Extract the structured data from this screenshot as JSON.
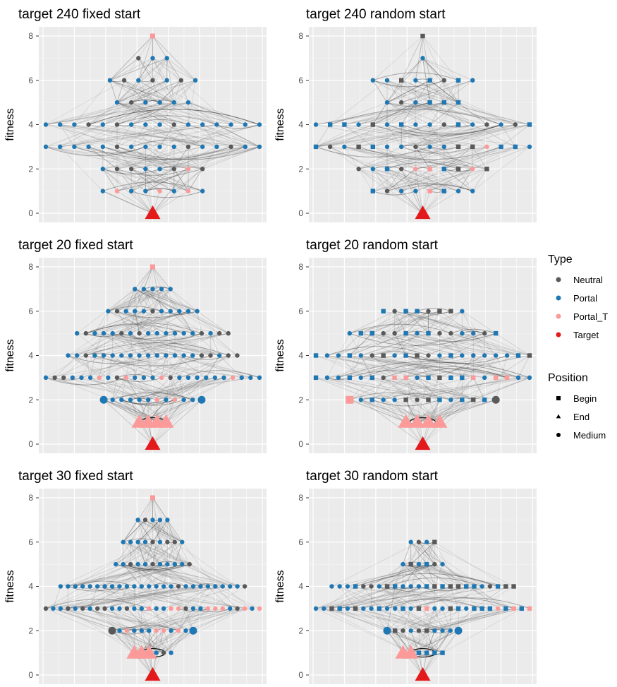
{
  "legend": {
    "type": {
      "title": "Type",
      "items": [
        {
          "label": "Neutral",
          "color": "#595959"
        },
        {
          "label": "Portal",
          "color": "#1f78b4"
        },
        {
          "label": "Portal_T",
          "color": "#fb9a99"
        },
        {
          "label": "Target",
          "color": "#e31a1c"
        }
      ]
    },
    "position": {
      "title": "Position",
      "items": [
        {
          "label": "Begin",
          "shape": "square"
        },
        {
          "label": "End",
          "shape": "triangle"
        },
        {
          "label": "Medium",
          "shape": "circle"
        }
      ]
    }
  },
  "chart_data": [
    {
      "type": "scatter",
      "title": "target 240 fixed start",
      "ylabel": "fitness",
      "ylim": [
        0,
        8
      ],
      "yticks": [
        0,
        2,
        4,
        6,
        8
      ],
      "grid": true,
      "start": "fixed",
      "levels": [
        {
          "fitness": 8,
          "n": 1,
          "begin": 1
        },
        {
          "fitness": 7,
          "n": 3
        },
        {
          "fitness": 6,
          "n": 7
        },
        {
          "fitness": 5,
          "n": 6
        },
        {
          "fitness": 4,
          "n": 16
        },
        {
          "fitness": 3,
          "n": 16
        },
        {
          "fitness": 2,
          "n": 8
        },
        {
          "fitness": 1,
          "n": 8
        },
        {
          "fitness": 0,
          "n": 1,
          "end": 1
        }
      ]
    },
    {
      "type": "scatter",
      "title": "target 240 random start",
      "ylabel": "fitness",
      "ylim": [
        0,
        8
      ],
      "yticks": [
        0,
        2,
        4,
        6,
        8
      ],
      "grid": true,
      "start": "random",
      "levels": [
        {
          "fitness": 8,
          "n": 1
        },
        {
          "fitness": 7,
          "n": 1
        },
        {
          "fitness": 6,
          "n": 8
        },
        {
          "fitness": 5,
          "n": 6
        },
        {
          "fitness": 4,
          "n": 16
        },
        {
          "fitness": 3,
          "n": 16
        },
        {
          "fitness": 2,
          "n": 10
        },
        {
          "fitness": 1,
          "n": 8
        },
        {
          "fitness": 0,
          "n": 1,
          "end": 1
        }
      ]
    },
    {
      "type": "scatter",
      "title": "target 20 fixed start",
      "ylabel": "fitness",
      "ylim": [
        0,
        8
      ],
      "yticks": [
        0,
        2,
        4,
        6,
        8
      ],
      "grid": true,
      "start": "fixed",
      "levels": [
        {
          "fitness": 8,
          "n": 1,
          "begin": 1
        },
        {
          "fitness": 7,
          "n": 5
        },
        {
          "fitness": 6,
          "n": 11
        },
        {
          "fitness": 5,
          "n": 18
        },
        {
          "fitness": 4,
          "n": 20
        },
        {
          "fitness": 3,
          "n": 25
        },
        {
          "fitness": 2,
          "n": 12,
          "big": true
        },
        {
          "fitness": 1,
          "n": 4,
          "end": 4,
          "ring": true
        },
        {
          "fitness": 0,
          "n": 1,
          "end": 1
        }
      ]
    },
    {
      "type": "scatter",
      "title": "target 20 random start",
      "ylabel": "fitness",
      "ylim": [
        0,
        8
      ],
      "yticks": [
        0,
        2,
        4,
        6,
        8
      ],
      "grid": true,
      "start": "random",
      "levels": [
        {
          "fitness": 6,
          "n": 8
        },
        {
          "fitness": 5,
          "n": 14
        },
        {
          "fitness": 4,
          "n": 20
        },
        {
          "fitness": 3,
          "n": 20
        },
        {
          "fitness": 2,
          "n": 14,
          "big": true
        },
        {
          "fitness": 1,
          "n": 4,
          "end": 4,
          "ring": true
        },
        {
          "fitness": 0,
          "n": 1,
          "end": 1
        }
      ]
    },
    {
      "type": "scatter",
      "title": "target 30 fixed start",
      "ylabel": "fitness",
      "ylim": [
        0,
        8
      ],
      "yticks": [
        0,
        2,
        4,
        6,
        8
      ],
      "grid": true,
      "start": "fixed",
      "levels": [
        {
          "fitness": 8,
          "n": 1,
          "begin": 1
        },
        {
          "fitness": 7,
          "n": 5
        },
        {
          "fitness": 6,
          "n": 9
        },
        {
          "fitness": 5,
          "n": 11
        },
        {
          "fitness": 4,
          "n": 26
        },
        {
          "fitness": 3,
          "n": 30
        },
        {
          "fitness": 2,
          "n": 12,
          "big": true
        },
        {
          "fitness": 1,
          "n": 6,
          "end": 3,
          "ring": true
        },
        {
          "fitness": 0,
          "n": 1,
          "end": 1
        }
      ]
    },
    {
      "type": "scatter",
      "title": "target 30 random start",
      "ylabel": "fitness",
      "ylim": [
        0,
        8
      ],
      "yticks": [
        0,
        2,
        4,
        6,
        8
      ],
      "grid": true,
      "start": "random",
      "levels": [
        {
          "fitness": 6,
          "n": 4
        },
        {
          "fitness": 5,
          "n": 6
        },
        {
          "fitness": 4,
          "n": 24
        },
        {
          "fitness": 3,
          "n": 28
        },
        {
          "fitness": 2,
          "n": 10,
          "big": true
        },
        {
          "fitness": 1,
          "n": 6,
          "end": 2,
          "ring": true
        },
        {
          "fitness": 0,
          "n": 1,
          "end": 1
        }
      ]
    }
  ]
}
